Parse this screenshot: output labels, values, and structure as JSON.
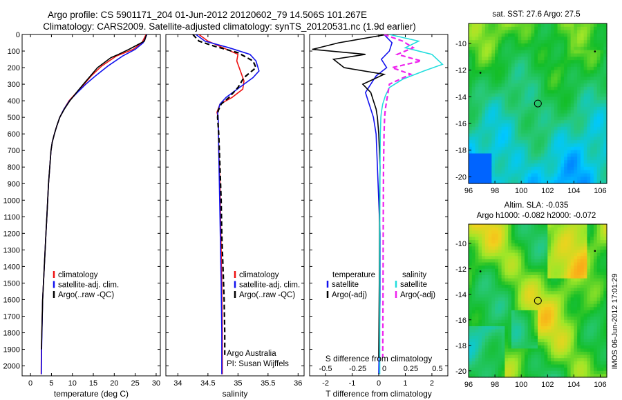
{
  "header": {
    "line1": "Argo profile: CS 5901171_204 01-Jun-2012 20120602_79 14.506S 101.267E",
    "line2": "Climatology: CARS2009. Satellite-adjusted climatology: synTS_20120531.nc (1.9d earlier)"
  },
  "sidebar_stamp": "IMOS 06-Jun-2012 17:01:29",
  "chart_data": [
    {
      "type": "line",
      "panel": "temperature",
      "xlabel": "temperature (deg C)",
      "ylabel": "",
      "xlim": [
        -2,
        31
      ],
      "ylim": [
        2060,
        0
      ],
      "xticks": [
        0,
        5,
        10,
        15,
        20,
        25,
        30
      ],
      "yticks": [
        0,
        100,
        200,
        300,
        400,
        500,
        600,
        700,
        800,
        900,
        1000,
        1100,
        1200,
        1300,
        1400,
        1500,
        1600,
        1700,
        1800,
        1900,
        2000
      ],
      "legend": [
        "climatology",
        "satellite-adj. clim.",
        "Argo(..raw -QC)"
      ],
      "legend_placement": "lower-right",
      "series": [
        {
          "name": "climatology",
          "color": "#ee1111",
          "dash": false,
          "x": [
            27.6,
            26.6,
            24.5,
            20.5,
            17.0,
            14.5,
            12.8,
            11.0,
            9.2,
            8.0,
            7.0,
            6.3,
            5.7,
            5.2,
            4.9,
            4.6,
            4.3,
            4.1,
            3.9,
            3.7,
            3.5,
            3.3,
            3.1,
            2.9,
            2.6,
            2.55
          ],
          "y": [
            0,
            50,
            90,
            130,
            190,
            250,
            300,
            350,
            400,
            450,
            500,
            550,
            600,
            650,
            700,
            800,
            900,
            1000,
            1100,
            1200,
            1300,
            1400,
            1500,
            1600,
            1900,
            2050
          ]
        },
        {
          "name": "satellite-adj. clim.",
          "color": "#1111ee",
          "dash": false,
          "x": [
            27.8,
            26.9,
            25.0,
            22.0,
            18.5,
            15.5,
            13.2,
            11.2,
            9.3,
            8.0,
            7.0,
            6.3,
            5.7,
            5.2,
            4.9,
            4.6,
            4.3,
            4.1,
            3.9,
            3.7,
            3.5,
            3.3,
            3.1,
            2.9,
            2.65,
            2.6
          ],
          "y": [
            0,
            50,
            90,
            130,
            190,
            250,
            300,
            350,
            400,
            450,
            500,
            550,
            600,
            650,
            700,
            800,
            900,
            1000,
            1100,
            1200,
            1300,
            1400,
            1500,
            1600,
            1900,
            2050
          ]
        },
        {
          "name": "Argo(..raw -QC)",
          "color": "#000000",
          "dash": false,
          "x": [
            27.7,
            27.2,
            23.5,
            21.0,
            19.2,
            16.0,
            13.3,
            11.3,
            9.4,
            8.1,
            7.0,
            6.3,
            5.7,
            5.2,
            4.9,
            4.6,
            4.3,
            4.1,
            3.9,
            3.7,
            3.5,
            3.3,
            3.1,
            2.9,
            2.6
          ],
          "y": [
            0,
            40,
            90,
            120,
            140,
            200,
            280,
            340,
            400,
            450,
            500,
            550,
            600,
            650,
            700,
            800,
            900,
            1000,
            1100,
            1200,
            1300,
            1400,
            1500,
            1600,
            1900
          ]
        }
      ]
    },
    {
      "type": "line",
      "panel": "salinity",
      "xlabel": "salinity",
      "ylabel": "",
      "xlim": [
        33.8,
        36.1
      ],
      "ylim": [
        2060,
        0
      ],
      "xticks": [
        34,
        34.5,
        35,
        35.5,
        36
      ],
      "yticks": [],
      "legend": [
        "climatology",
        "satellite-adj. clim.",
        "Argo(..raw -QC)"
      ],
      "legend_placement": "lower-right",
      "annotation": [
        "Argo Australia",
        "PI: Susan Wijffels"
      ],
      "series": [
        {
          "name": "climatology",
          "color": "#ee1111",
          "dash": false,
          "x": [
            34.35,
            34.5,
            34.75,
            35.0,
            34.98,
            35.02,
            35.05,
            35.1,
            35.08,
            34.9,
            34.7,
            34.65,
            34.67,
            34.68,
            34.7,
            34.71,
            34.72,
            34.73,
            34.74,
            34.74
          ],
          "y": [
            0,
            40,
            80,
            120,
            160,
            200,
            230,
            280,
            330,
            380,
            420,
            470,
            500,
            700,
            900,
            1100,
            1300,
            1500,
            1800,
            2050
          ]
        },
        {
          "name": "satellite-adj. clim.",
          "color": "#1111ee",
          "dash": false,
          "x": [
            34.3,
            34.45,
            34.85,
            35.2,
            35.3,
            35.35,
            35.25,
            35.1,
            34.95,
            34.8,
            34.7,
            34.66,
            34.67,
            34.68,
            34.69,
            34.7,
            34.71,
            34.72,
            34.73,
            34.73
          ],
          "y": [
            0,
            40,
            80,
            120,
            160,
            220,
            260,
            300,
            340,
            380,
            420,
            470,
            500,
            700,
            900,
            1100,
            1300,
            1500,
            1800,
            2050
          ]
        },
        {
          "name": "Argo(..raw -QC)",
          "color": "#000000",
          "dash": true,
          "x": [
            34.25,
            34.35,
            34.6,
            35.0,
            35.25,
            35.3,
            35.1,
            35.0,
            34.85,
            34.72,
            34.67,
            34.66,
            34.68,
            34.7,
            34.72,
            34.73,
            34.75,
            34.77,
            34.78,
            34.78
          ],
          "y": [
            0,
            40,
            70,
            110,
            160,
            200,
            260,
            320,
            380,
            420,
            460,
            500,
            600,
            800,
            1000,
            1200,
            1400,
            1600,
            1800,
            1950
          ]
        }
      ]
    },
    {
      "type": "line",
      "panel": "difference",
      "xlabel": "T difference from climatology",
      "xlabel2": "S difference from climatology",
      "xlim": [
        -2.6,
        2.6
      ],
      "ylim": [
        2060,
        0
      ],
      "xticks": [
        -2,
        -1,
        0,
        1,
        2
      ],
      "xticks2_labels": [
        "-0.5",
        "-0.25",
        "0",
        "0.25",
        "0.5"
      ],
      "yticks": [],
      "legend_left_title": "temperature",
      "legend_right_title": "salinity",
      "legend": [
        "satellite",
        "Argo(-adj)",
        "satellite",
        "Argo(-adj)"
      ],
      "legend_placement": "lower",
      "series": [
        {
          "name": "satellite",
          "group": "temperature",
          "color": "#1111ee",
          "dash": false,
          "x": [
            0.2,
            0.5,
            0.4,
            0.1,
            0.3,
            -0.1,
            -0.3,
            -0.5,
            -0.4,
            -0.3,
            -0.2,
            -0.1,
            -0.05,
            0.0,
            0.05,
            0.05,
            0.05,
            0.0
          ],
          "y": [
            0,
            50,
            100,
            150,
            200,
            250,
            300,
            350,
            400,
            450,
            500,
            600,
            800,
            1000,
            1200,
            1400,
            1600,
            2050
          ]
        },
        {
          "name": "Argo(-adj)",
          "group": "temperature",
          "color": "#000000",
          "dash": false,
          "x": [
            0.3,
            -1.5,
            -2.5,
            -0.5,
            -1.7,
            -1.3,
            0.2,
            -0.6,
            -0.3,
            -0.2,
            -0.1,
            -0.05,
            0.0,
            0.05,
            0.03,
            0.02,
            0.0
          ],
          "y": [
            0,
            50,
            90,
            120,
            150,
            200,
            240,
            300,
            350,
            400,
            450,
            500,
            600,
            800,
            1000,
            1500,
            1950
          ]
        },
        {
          "name": "satellite",
          "group": "salinity",
          "color": "#22dddd",
          "dash": false,
          "x": [
            0.4,
            1.5,
            1.0,
            2.0,
            2.4,
            1.7,
            0.9,
            0.4,
            0.25,
            0.15,
            0.1,
            0.08,
            0.06,
            0.05,
            0.04,
            0.04,
            0.04
          ],
          "y": [
            0,
            40,
            80,
            120,
            180,
            220,
            270,
            320,
            370,
            420,
            470,
            500,
            600,
            800,
            1200,
            1600,
            2050
          ]
        },
        {
          "name": "Argo(-adj)",
          "group": "salinity",
          "color": "#ee22ee",
          "dash": true,
          "x": [
            0.2,
            0.9,
            1.3,
            0.7,
            1.6,
            0.5,
            1.2,
            0.4,
            0.35,
            0.3,
            0.25,
            0.22,
            0.2,
            0.18,
            0.17,
            0.16,
            0.15
          ],
          "y": [
            0,
            40,
            80,
            120,
            160,
            200,
            240,
            300,
            350,
            400,
            450,
            500,
            600,
            800,
            1200,
            1600,
            1950
          ]
        }
      ]
    },
    {
      "type": "heatmap",
      "panel": "sst-map",
      "title": "sat. SST: 27.6 Argo: 27.5",
      "xlim": [
        96,
        106.5
      ],
      "ylim": [
        -20.5,
        -8.5
      ],
      "xticks": [
        96,
        98,
        100,
        102,
        104,
        106
      ],
      "yticks": [
        -10,
        -12,
        -14,
        -16,
        -18,
        -20
      ],
      "profile_location": [
        101.267,
        -14.506
      ],
      "other_profiles": [
        [
          105.6,
          -10.6
        ],
        [
          96.9,
          -12.2
        ]
      ]
    },
    {
      "type": "heatmap",
      "panel": "sla-map",
      "title": "Altim. SLA: -0.035",
      "subtitle": "Argo h1000: -0.082 h2000: -0.072",
      "xlim": [
        96,
        106.5
      ],
      "ylim": [
        -20.5,
        -8.5
      ],
      "xticks": [
        96,
        98,
        100,
        102,
        104,
        106
      ],
      "yticks": [
        -10,
        -12,
        -14,
        -16,
        -18,
        -20
      ],
      "profile_location": [
        101.267,
        -14.506
      ],
      "other_profiles": [
        [
          105.6,
          -10.6
        ],
        [
          96.9,
          -12.2
        ]
      ]
    }
  ]
}
